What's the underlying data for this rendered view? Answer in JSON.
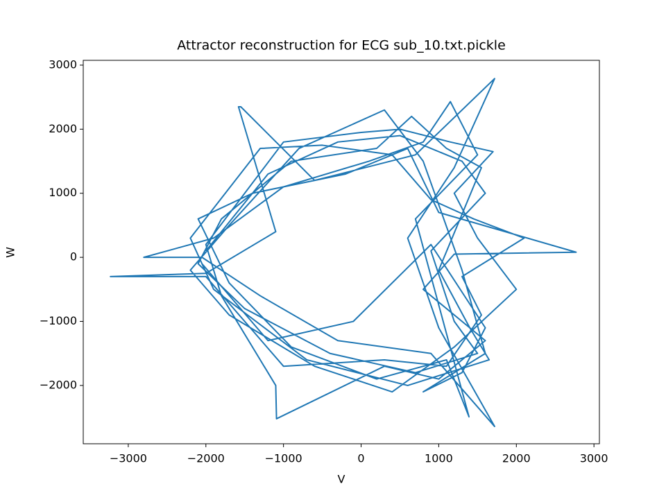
{
  "chart_data": {
    "type": "line",
    "title": "Attractor reconstruction for ECG sub_10.txt.pickle",
    "x_label": "V",
    "y_label": "W",
    "xlim": [
      -3580,
      3070
    ],
    "ylim": [
      -2910,
      3075
    ],
    "xticks": [
      {
        "value": -3000,
        "label": "−3000"
      },
      {
        "value": -2000,
        "label": "−2000"
      },
      {
        "value": -1000,
        "label": "−1000"
      },
      0,
      1000,
      2000,
      3000
    ],
    "yticks": [
      {
        "value": -2000,
        "label": "−2000"
      },
      {
        "value": -1000,
        "label": "−1000"
      },
      0,
      1000,
      2000,
      3000
    ],
    "grid": false,
    "series": [
      {
        "color": "#1f77b4",
        "x": [
          -2000,
          -1200,
          -300,
          500,
          1300,
          1600,
          900,
          1200,
          1500,
          700,
          -400,
          -1500,
          -2100,
          -1800,
          -900,
          200,
          650,
          1100,
          1550,
          1000,
          1400,
          1650,
          600,
          -700,
          -1900,
          -2200,
          -1300,
          -500,
          400,
          900,
          1450,
          2100,
          1300,
          1550,
          1100,
          300,
          -1000,
          -2000,
          -3230,
          -2000,
          -1100,
          -1580,
          -1550,
          -600,
          700,
          1720,
          1200,
          600,
          1000,
          1720,
          900,
          -300,
          -1300,
          -2050,
          -2800,
          -1900,
          -1000,
          100,
          800,
          1150,
          1500,
          700,
          1390,
          1100,
          200,
          -900,
          -1700,
          -2100,
          -1400,
          -200,
          600,
          1000,
          2770,
          1200,
          800,
          1600,
          1000,
          300,
          -1090,
          -1100,
          -1800,
          -2000,
          -1000,
          0,
          500,
          1150,
          1700,
          1200,
          1500,
          2000,
          1200,
          400,
          -600,
          -1700,
          -2200,
          -1700,
          -800,
          300,
          800,
          1300,
          1600,
          800,
          1300,
          1600,
          900,
          -100,
          -1200,
          -2050
        ],
        "values": [
          100,
          1300,
          1800,
          1900,
          1500,
          1000,
          100,
          -1000,
          -1500,
          -1800,
          -1500,
          -800,
          -100,
          600,
          1500,
          1700,
          2200,
          1700,
          1400,
          -200,
          -1100,
          -1600,
          -2000,
          -1600,
          -500,
          300,
          1700,
          1750,
          1600,
          900,
          600,
          300,
          -300,
          -900,
          -1700,
          -1600,
          -1700,
          -300,
          -300,
          -250,
          400,
          2350,
          2350,
          1200,
          1600,
          2790,
          1400,
          300,
          -1100,
          -2640,
          -1500,
          -1300,
          -600,
          0,
          0,
          300,
          1100,
          1500,
          1800,
          2430,
          1600,
          600,
          -2490,
          -1600,
          -1900,
          -1400,
          -400,
          600,
          1000,
          1300,
          1700,
          700,
          80,
          50,
          -500,
          -1300,
          -1900,
          -1700,
          -2520,
          -2000,
          -600,
          200,
          1800,
          1950,
          2000,
          1800,
          1650,
          1000,
          300,
          -500,
          -1400,
          -2100,
          -1700,
          -900,
          -200,
          500,
          1700,
          2300,
          1500,
          -200,
          -1500,
          -2100,
          -1800,
          -1100,
          200,
          -1000,
          -1300,
          -100
        ]
      }
    ]
  }
}
